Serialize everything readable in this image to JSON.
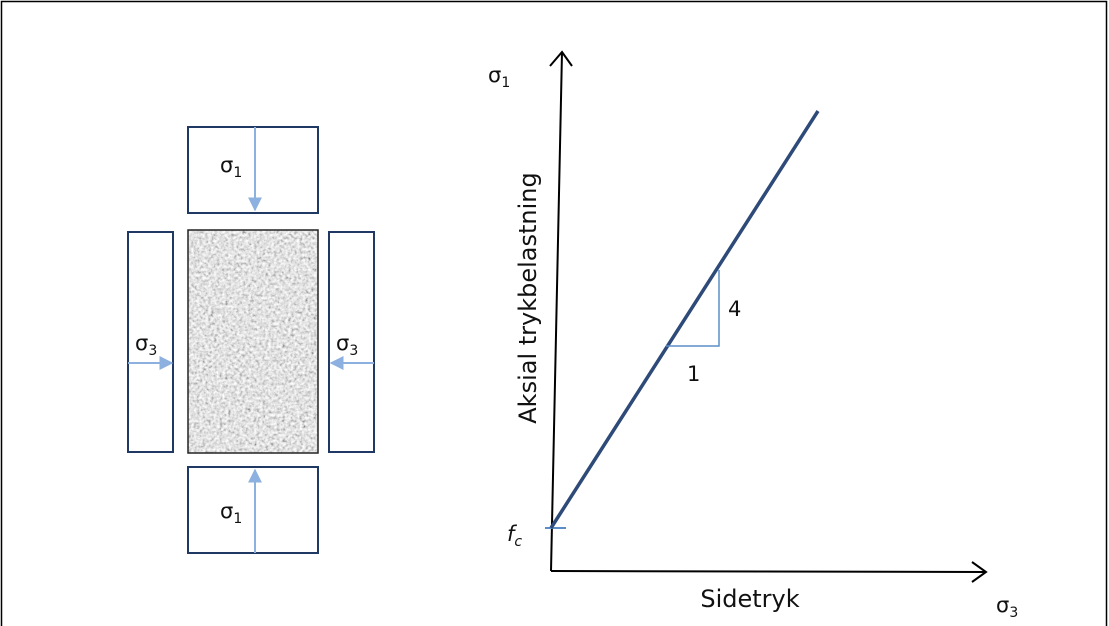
{
  "specimen": {
    "top": {
      "symbol": "σ",
      "sub": "1"
    },
    "bottom": {
      "symbol": "σ",
      "sub": "1"
    },
    "left": {
      "symbol": "σ",
      "sub": "3"
    },
    "right": {
      "symbol": "σ",
      "sub": "3"
    }
  },
  "graph": {
    "y_axis": {
      "symbol": "σ",
      "sub": "1",
      "label": "Aksial trykbelastning"
    },
    "x_axis": {
      "symbol": "σ",
      "sub": "3",
      "label": "Sidetryk"
    },
    "intercept": {
      "symbol": "f",
      "sub": "c"
    },
    "slope_rise": "4",
    "slope_run": "1"
  }
}
